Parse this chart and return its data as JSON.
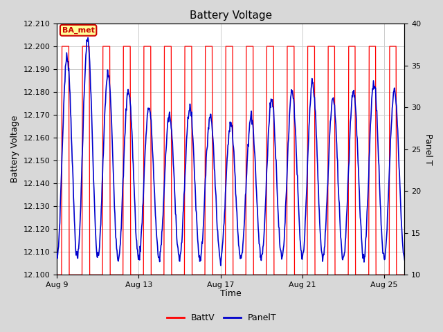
{
  "title": "Battery Voltage",
  "xlabel": "Time",
  "ylabel_left": "Battery Voltage",
  "ylabel_right": "Panel T",
  "ylim_left": [
    12.1,
    12.21
  ],
  "ylim_right": [
    10,
    40
  ],
  "yticks_left": [
    12.1,
    12.11,
    12.12,
    12.13,
    12.14,
    12.15,
    12.16,
    12.17,
    12.18,
    12.19,
    12.2,
    12.21
  ],
  "yticks_right": [
    10,
    15,
    20,
    25,
    30,
    35,
    40
  ],
  "xtick_labels": [
    "Aug 9",
    "Aug 13",
    "Aug 17",
    "Aug 21",
    "Aug 25"
  ],
  "xtick_positions": [
    0,
    4,
    8,
    12,
    16
  ],
  "annotation_text": "BA_met",
  "annotation_color": "#cc0000",
  "annotation_bg": "#ffff99",
  "batt_color": "#ff0000",
  "panel_color": "#0000cc",
  "bg_color": "#d8d8d8",
  "plot_bg": "#ffffff",
  "legend_batt": "BattV",
  "legend_panel": "PanelT",
  "grid_color": "#cccccc",
  "n_days": 17,
  "panel_max_by_day": [
    36,
    38,
    34,
    32,
    30,
    29,
    30,
    29,
    28,
    29,
    31,
    32,
    33,
    31,
    32,
    33,
    32
  ],
  "panel_min": 12
}
